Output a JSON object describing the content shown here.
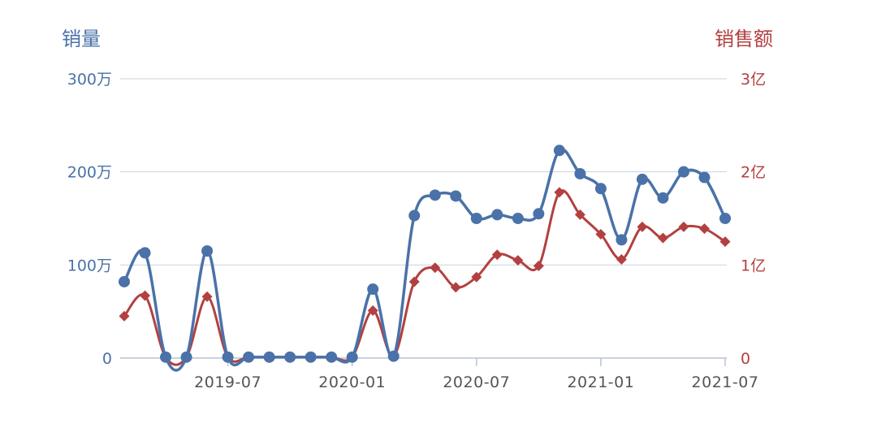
{
  "chart_data": {
    "type": "line",
    "x": [
      "2019-02",
      "2019-03",
      "2019-04",
      "2019-05",
      "2019-06",
      "2019-07",
      "2019-08",
      "2019-09",
      "2019-10",
      "2019-11",
      "2019-12",
      "2020-01",
      "2020-02",
      "2020-03",
      "2020-04",
      "2020-05",
      "2020-06",
      "2020-07",
      "2020-08",
      "2020-09",
      "2020-10",
      "2020-11",
      "2020-12",
      "2021-01",
      "2021-02",
      "2021-03",
      "2021-04",
      "2021-05",
      "2021-06",
      "2021-07"
    ],
    "x_tick_labels": [
      "2019-07",
      "2020-01",
      "2020-07",
      "2021-01",
      "2021-07"
    ],
    "left_axis": {
      "title": "销量",
      "tick_labels": [
        "0",
        "100万",
        "200万",
        "300万"
      ],
      "ylim": [
        0,
        300
      ],
      "unit_note": "万"
    },
    "right_axis": {
      "title": "销售额",
      "tick_labels": [
        "0",
        "1亿",
        "2亿",
        "3亿"
      ],
      "ylim": [
        0,
        3
      ]
    },
    "series": [
      {
        "axis": "left",
        "color": "#4a72a8",
        "marker": "circle",
        "values": [
          82,
          113,
          1,
          1,
          115,
          1,
          1,
          1,
          1,
          1,
          1,
          1,
          74,
          2,
          153,
          175,
          174,
          150,
          154,
          150,
          155,
          223,
          198,
          182,
          127,
          192,
          172,
          200,
          194,
          150
        ]
      },
      {
        "axis": "right",
        "color": "#b34041",
        "marker": "diamond",
        "values": [
          0.45,
          0.67,
          0.01,
          0.01,
          0.66,
          0.01,
          0.01,
          0.01,
          0.01,
          0.01,
          0.01,
          0.01,
          0.51,
          0.02,
          0.82,
          0.97,
          0.76,
          0.87,
          1.11,
          1.05,
          0.99,
          1.78,
          1.54,
          1.33,
          1.06,
          1.41,
          1.29,
          1.41,
          1.39,
          1.25
        ]
      }
    ],
    "grid": true,
    "legend": "none",
    "colors": {
      "left_axis": "#4a72a8",
      "right_axis": "#b34041",
      "grid": "#c8d2de",
      "baseline": "#b8c4d2"
    }
  }
}
